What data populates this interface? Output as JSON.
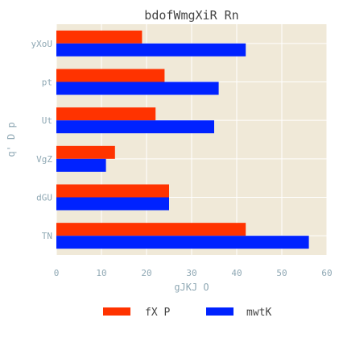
{
  "chart_data": {
    "type": "bar",
    "orientation": "horizontal",
    "title": "bdofWmgXiR Rn",
    "xlabel": "gJKJ O",
    "ylabel": "q' D p",
    "categories": [
      "TN",
      "dGU",
      "VgZ",
      "Ut",
      "pt",
      "yXoU"
    ],
    "series": [
      {
        "name": "fX P",
        "color": "#ff3300",
        "values": [
          42,
          25,
          13,
          22,
          24,
          19
        ]
      },
      {
        "name": "mwtK",
        "color": "#0022ff",
        "values": [
          56,
          25,
          11,
          35,
          36,
          42
        ]
      }
    ],
    "xlim": [
      0,
      60
    ],
    "xticks": [
      "0",
      "10",
      "20",
      "30",
      "40",
      "50",
      "60"
    ],
    "grid": true,
    "legend_position": "bottom-center",
    "colors": {
      "plot_background": "#f0e9d8",
      "grid": "#ffffff",
      "text_title": "#444444",
      "text_axis": "#8fa8b4"
    }
  }
}
